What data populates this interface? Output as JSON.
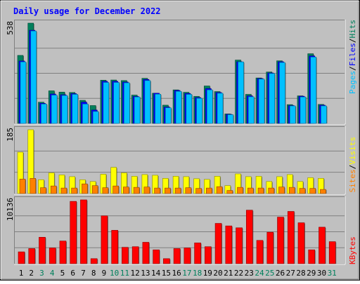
{
  "title": "Daily usage for December 2022",
  "colors": {
    "background": "#c0c0c0",
    "hits": "#00805c",
    "files": "#0000ff",
    "pages": "#00c0ff",
    "visits": "#ffff00",
    "sites": "#ff8000",
    "kbytes": "#ff0000",
    "title_text": "#0000ff",
    "weekend_label": "#00805c"
  },
  "chart_data": [
    {
      "type": "bar",
      "name": "hits-files-pages",
      "y_max_label": "538",
      "ylim": [
        0,
        538
      ],
      "side_label": [
        "Pages",
        "Files",
        "Hits"
      ],
      "categories": [
        "1",
        "2",
        "3",
        "4",
        "5",
        "6",
        "7",
        "8",
        "9",
        "10",
        "11",
        "12",
        "13",
        "14",
        "15",
        "16",
        "17",
        "18",
        "19",
        "20",
        "21",
        "22",
        "23",
        "24",
        "25",
        "26",
        "27",
        "28",
        "29",
        "30",
        "31"
      ],
      "series": [
        {
          "name": "Hits",
          "values": [
            365,
            538,
            114,
            175,
            168,
            166,
            124,
            96,
            232,
            233,
            230,
            152,
            242,
            162,
            98,
            180,
            167,
            145,
            201,
            171,
            51,
            340,
            156,
            244,
            276,
            336,
            101,
            148,
            374,
            102,
            0
          ]
        },
        {
          "name": "Files",
          "values": [
            335,
            500,
            108,
            158,
            154,
            160,
            114,
            72,
            226,
            226,
            222,
            145,
            236,
            162,
            88,
            177,
            161,
            139,
            187,
            166,
            49,
            331,
            148,
            241,
            271,
            331,
            96,
            146,
            362,
            98,
            0
          ]
        },
        {
          "name": "Pages",
          "values": [
            330,
            496,
            104,
            152,
            150,
            156,
            104,
            64,
            220,
            220,
            218,
            142,
            230,
            157,
            84,
            172,
            156,
            135,
            180,
            162,
            47,
            330,
            143,
            238,
            268,
            327,
            94,
            142,
            356,
            94,
            0
          ]
        }
      ]
    },
    {
      "type": "bar",
      "name": "visits-sites",
      "y_max_label": "185",
      "ylim": [
        0,
        185
      ],
      "side_label": [
        "Sites",
        "Visits"
      ],
      "categories": [
        "1",
        "2",
        "3",
        "4",
        "5",
        "6",
        "7",
        "8",
        "9",
        "10",
        "11",
        "12",
        "13",
        "14",
        "15",
        "16",
        "17",
        "18",
        "19",
        "20",
        "21",
        "22",
        "23",
        "24",
        "25",
        "26",
        "27",
        "28",
        "29",
        "30",
        "31"
      ],
      "series": [
        {
          "name": "Visits",
          "values": [
            120,
            185,
            40,
            60,
            54,
            49,
            40,
            35,
            56,
            76,
            60,
            50,
            55,
            53,
            44,
            50,
            49,
            43,
            41,
            50,
            23,
            57,
            49,
            50,
            35,
            49,
            55,
            35,
            46,
            44,
            0
          ]
        },
        {
          "name": "Sites",
          "values": [
            42,
            44,
            17,
            22,
            16,
            16,
            28,
            23,
            17,
            22,
            19,
            18,
            19,
            16,
            16,
            16,
            17,
            15,
            16,
            20,
            9,
            18,
            16,
            16,
            16,
            19,
            18,
            15,
            15,
            12,
            0
          ]
        }
      ]
    },
    {
      "type": "bar",
      "name": "kbytes",
      "y_max_label": "10136",
      "ylim": [
        0,
        10136
      ],
      "side_label": [
        "KBytes"
      ],
      "categories": [
        "1",
        "2",
        "3",
        "4",
        "5",
        "6",
        "7",
        "8",
        "9",
        "10",
        "11",
        "12",
        "13",
        "14",
        "15",
        "16",
        "17",
        "18",
        "19",
        "20",
        "21",
        "22",
        "23",
        "24",
        "25",
        "26",
        "27",
        "28",
        "29",
        "30",
        "31"
      ],
      "series": [
        {
          "name": "KBytes",
          "values": [
            1880,
            2400,
            4200,
            2500,
            3600,
            9900,
            10136,
            800,
            7600,
            5300,
            2600,
            2700,
            3400,
            2200,
            800,
            2400,
            2500,
            3300,
            2700,
            6400,
            6000,
            5700,
            8500,
            3700,
            5000,
            7400,
            8300,
            6500,
            2200,
            5800,
            3500
          ]
        }
      ]
    }
  ],
  "x_labels": [
    "1",
    "2",
    "3",
    "4",
    "5",
    "6",
    "7",
    "8",
    "9",
    "10",
    "11",
    "12",
    "13",
    "14",
    "15",
    "16",
    "17",
    "18",
    "19",
    "20",
    "21",
    "22",
    "23",
    "24",
    "25",
    "26",
    "27",
    "28",
    "29",
    "30",
    "31"
  ],
  "weekend_days": [
    3,
    4,
    10,
    11,
    17,
    18,
    24,
    25,
    31
  ]
}
